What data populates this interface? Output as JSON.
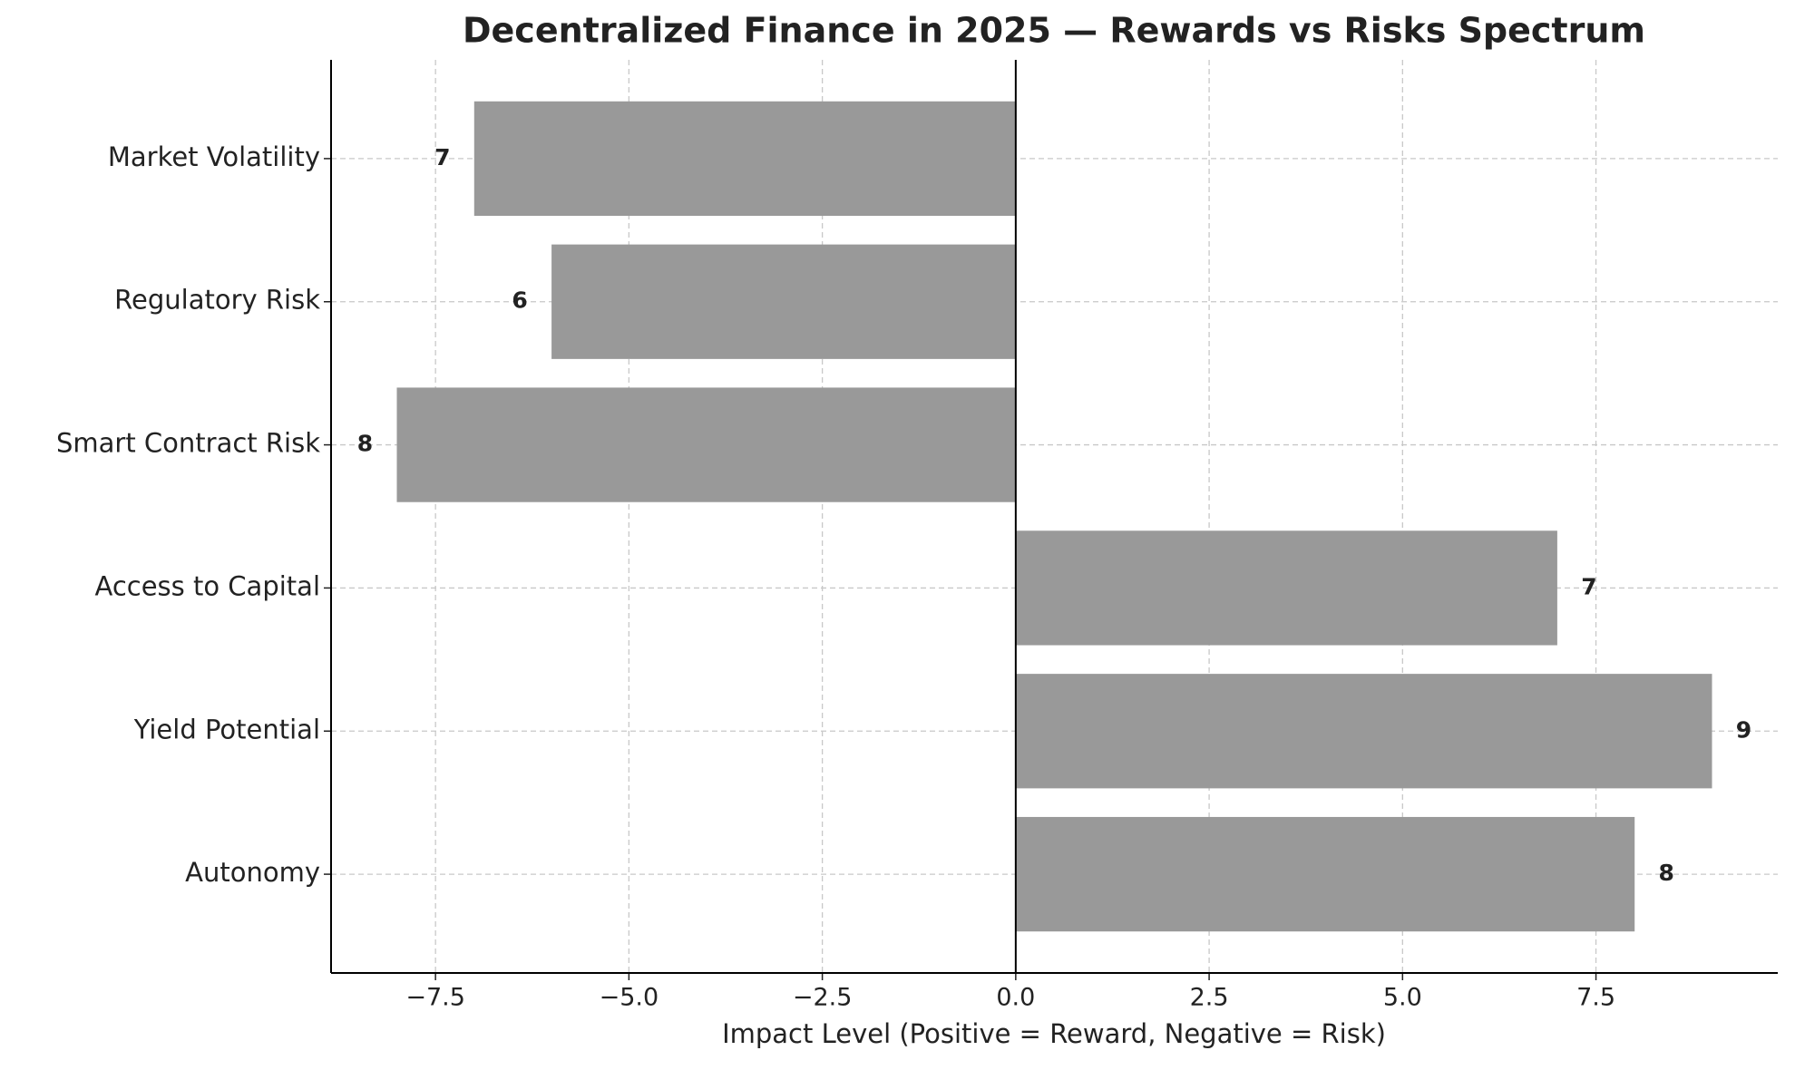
{
  "chart_data": {
    "type": "barh",
    "title": "Decentralized Finance in 2025 — Rewards vs Risks Spectrum",
    "x_label": "Impact Level (Positive = Reward, Negative = Risk)",
    "categories": [
      "Market Volatility",
      "Regulatory Risk",
      "Smart Contract Risk",
      "Access to Capital",
      "Yield Potential",
      "Autonomy"
    ],
    "values": [
      -7,
      -6,
      -8,
      7,
      9,
      8
    ],
    "value_labels": [
      "7",
      "6",
      "8",
      "7",
      "9",
      "8"
    ],
    "color": "#999999",
    "xlim": [
      -8.85,
      9.85
    ],
    "xticks": [
      {
        "value": -7.5,
        "label": "−7.5"
      },
      {
        "value": -5,
        "label": "−5.0"
      },
      {
        "value": -2.5,
        "label": "−2.5"
      },
      {
        "value": 0,
        "label": "0.0"
      },
      {
        "value": 2.5,
        "label": "2.5"
      },
      {
        "value": 5,
        "label": "5.0"
      },
      {
        "value": 7.5,
        "label": "7.5"
      }
    ],
    "grid": true
  }
}
